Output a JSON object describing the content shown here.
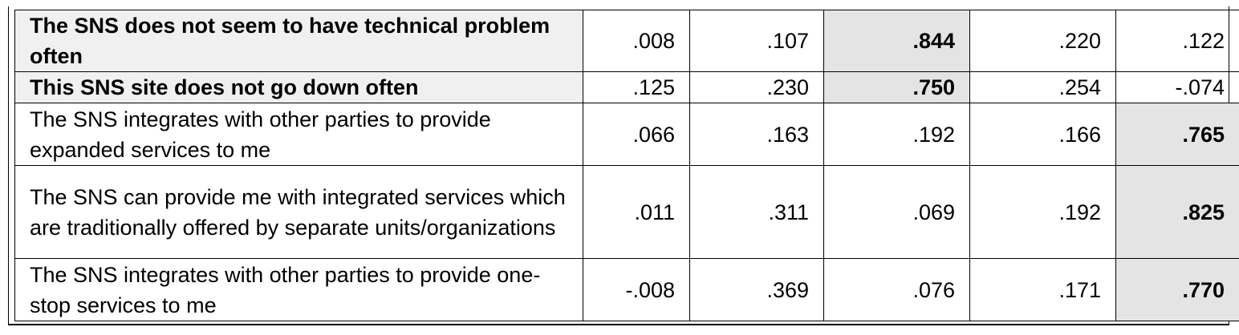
{
  "rows": [
    {
      "item": "The SNS does not seem to have technical problem often",
      "bold": true,
      "values": [
        ".008",
        ".107",
        ".844",
        ".220",
        ".122"
      ],
      "highlight_column": 2
    },
    {
      "item": "This SNS site does not go down often",
      "bold": true,
      "values": [
        ".125",
        ".230",
        ".750",
        ".254",
        "-.074"
      ],
      "highlight_column": 2
    },
    {
      "item": "The SNS integrates with other parties to provide expanded services to me",
      "bold": false,
      "values": [
        ".066",
        ".163",
        ".192",
        ".166",
        ".765"
      ],
      "highlight_column": 4
    },
    {
      "item": "The SNS  can provide me with integrated services which are traditionally offered by separate units/organizations",
      "bold": false,
      "values": [
        ".011",
        ".311",
        ".069",
        ".192",
        ".825"
      ],
      "highlight_column": 4
    },
    {
      "item": "The SNS integrates with other parties to provide one-stop services to me",
      "bold": false,
      "values": [
        "-.008",
        ".369",
        ".076",
        ".171",
        ".770"
      ],
      "highlight_column": 4
    }
  ],
  "colors": {
    "highlight_fill": "#e4e4e4",
    "label_shade": "#f0f0f0",
    "border": "#000000"
  }
}
